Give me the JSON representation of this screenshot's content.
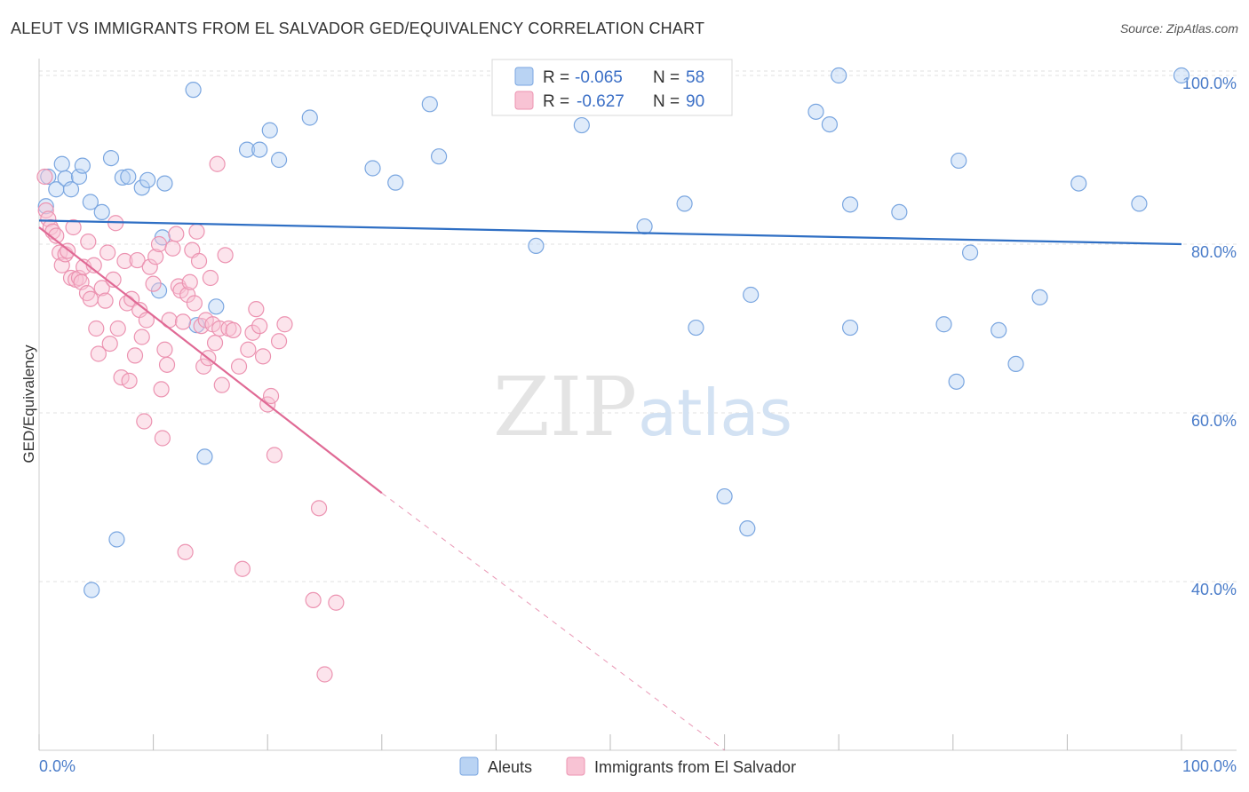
{
  "title": "ALEUT VS IMMIGRANTS FROM EL SALVADOR GED/EQUIVALENCY CORRELATION CHART",
  "source": "Source: ZipAtlas.com",
  "watermark": {
    "zip": "ZIP",
    "atlas": "atlas"
  },
  "stats": {
    "r_label": "R =",
    "n_label": "N =",
    "aleuts": {
      "r": "-0.065",
      "n": "58"
    },
    "salvador": {
      "r": "-0.627",
      "n": "90"
    }
  },
  "colors": {
    "aleut_fill": "#b9d3f3",
    "aleut_stroke": "#7aa6e0",
    "aleut_line": "#2f6fc4",
    "salvador_fill": "#f8c3d4",
    "salvador_stroke": "#ec93b1",
    "salvador_line": "#e06a95",
    "grid": "#e2e2e2",
    "tick_label": "#4a7cc9"
  },
  "chart_data": {
    "type": "scatter",
    "title": "ALEUT VS IMMIGRANTS FROM EL SALVADOR GED/EQUIVALENCY CORRELATION CHART",
    "xlabel": "",
    "ylabel": "GED/Equivalency",
    "xlim": [
      0,
      100
    ],
    "ylim": [
      20,
      102
    ],
    "x_tick_labels": [
      "0.0%",
      "100.0%"
    ],
    "y_ticks": [
      40,
      60,
      80,
      100
    ],
    "y_tick_labels": [
      "40.0%",
      "60.0%",
      "80.0%",
      "100.0%"
    ],
    "grid": true,
    "legend": "bottom-center",
    "series": [
      {
        "name": "Aleuts",
        "points": [
          [
            0.6,
            84.5
          ],
          [
            0.8,
            88.0
          ],
          [
            1.5,
            86.5
          ],
          [
            2.0,
            89.5
          ],
          [
            2.3,
            87.8
          ],
          [
            2.8,
            86.5
          ],
          [
            3.5,
            88.0
          ],
          [
            3.8,
            89.3
          ],
          [
            4.5,
            85.0
          ],
          [
            5.5,
            83.8
          ],
          [
            6.3,
            90.2
          ],
          [
            7.3,
            87.9
          ],
          [
            7.8,
            88.0
          ],
          [
            9.0,
            86.7
          ],
          [
            9.5,
            87.6
          ],
          [
            11.0,
            87.2
          ],
          [
            10.5,
            74.5
          ],
          [
            10.8,
            80.8
          ],
          [
            13.5,
            98.3
          ],
          [
            13.8,
            70.4
          ],
          [
            14.5,
            54.8
          ],
          [
            15.5,
            72.6
          ],
          [
            18.2,
            91.2
          ],
          [
            19.3,
            91.2
          ],
          [
            20.2,
            93.5
          ],
          [
            21.0,
            90.0
          ],
          [
            6.8,
            45.0
          ],
          [
            4.6,
            39.0
          ],
          [
            23.7,
            95.0
          ],
          [
            29.2,
            89.0
          ],
          [
            31.2,
            87.3
          ],
          [
            34.2,
            96.6
          ],
          [
            35.0,
            90.4
          ],
          [
            43.5,
            79.8
          ],
          [
            47.5,
            94.1
          ],
          [
            53.0,
            82.1
          ],
          [
            56.0,
            99.9
          ],
          [
            56.5,
            84.8
          ],
          [
            57.5,
            70.1
          ],
          [
            60.0,
            50.1
          ],
          [
            62.0,
            46.3
          ],
          [
            62.3,
            74.0
          ],
          [
            68.0,
            95.7
          ],
          [
            69.2,
            94.2
          ],
          [
            70.0,
            100.0
          ],
          [
            71.0,
            84.7
          ],
          [
            71.0,
            70.1
          ],
          [
            75.3,
            83.8
          ],
          [
            79.2,
            70.5
          ],
          [
            80.3,
            63.7
          ],
          [
            80.5,
            89.9
          ],
          [
            81.5,
            79.0
          ],
          [
            84.0,
            69.8
          ],
          [
            85.5,
            65.8
          ],
          [
            87.6,
            73.7
          ],
          [
            91.0,
            87.2
          ],
          [
            96.3,
            84.8
          ],
          [
            100.0,
            100.0
          ]
        ]
      },
      {
        "name": "Immigrants from El Salvador",
        "points": [
          [
            0.5,
            88.0
          ],
          [
            0.6,
            84.0
          ],
          [
            0.8,
            83.0
          ],
          [
            1.0,
            82.0
          ],
          [
            1.2,
            81.5
          ],
          [
            1.5,
            81.0
          ],
          [
            1.8,
            79.0
          ],
          [
            2.0,
            77.5
          ],
          [
            2.3,
            78.8
          ],
          [
            2.5,
            79.2
          ],
          [
            2.8,
            76.0
          ],
          [
            3.0,
            82.0
          ],
          [
            3.2,
            75.8
          ],
          [
            3.5,
            76.0
          ],
          [
            3.7,
            75.5
          ],
          [
            3.9,
            77.3
          ],
          [
            4.2,
            74.2
          ],
          [
            4.5,
            73.5
          ],
          [
            4.3,
            80.3
          ],
          [
            4.8,
            77.5
          ],
          [
            5.0,
            70.0
          ],
          [
            5.2,
            67.0
          ],
          [
            5.5,
            74.8
          ],
          [
            5.8,
            73.3
          ],
          [
            6.0,
            79.0
          ],
          [
            6.2,
            68.2
          ],
          [
            6.5,
            75.8
          ],
          [
            6.7,
            82.5
          ],
          [
            6.9,
            70.0
          ],
          [
            7.2,
            64.2
          ],
          [
            7.5,
            78.0
          ],
          [
            7.7,
            73.0
          ],
          [
            7.9,
            63.8
          ],
          [
            8.1,
            73.5
          ],
          [
            8.4,
            66.8
          ],
          [
            8.6,
            78.1
          ],
          [
            8.8,
            72.2
          ],
          [
            9.0,
            69.0
          ],
          [
            9.2,
            59.0
          ],
          [
            9.4,
            71.0
          ],
          [
            9.7,
            77.3
          ],
          [
            10.0,
            75.3
          ],
          [
            10.2,
            78.5
          ],
          [
            10.5,
            80.0
          ],
          [
            10.7,
            62.8
          ],
          [
            10.8,
            57.0
          ],
          [
            11.0,
            67.5
          ],
          [
            11.2,
            65.7
          ],
          [
            11.4,
            71.0
          ],
          [
            11.7,
            79.5
          ],
          [
            12.0,
            81.2
          ],
          [
            12.2,
            75.0
          ],
          [
            12.4,
            74.5
          ],
          [
            12.6,
            70.8
          ],
          [
            12.8,
            43.5
          ],
          [
            13.0,
            74.0
          ],
          [
            13.2,
            75.5
          ],
          [
            13.4,
            79.3
          ],
          [
            13.6,
            73.0
          ],
          [
            13.8,
            81.5
          ],
          [
            14.0,
            78.0
          ],
          [
            14.2,
            70.3
          ],
          [
            14.4,
            65.5
          ],
          [
            14.6,
            71.0
          ],
          [
            14.8,
            66.5
          ],
          [
            15.0,
            76.0
          ],
          [
            15.2,
            70.5
          ],
          [
            15.4,
            68.3
          ],
          [
            15.6,
            89.5
          ],
          [
            15.8,
            70.0
          ],
          [
            16.0,
            63.3
          ],
          [
            16.3,
            78.7
          ],
          [
            16.6,
            70.0
          ],
          [
            17.0,
            69.8
          ],
          [
            17.5,
            65.5
          ],
          [
            17.8,
            41.5
          ],
          [
            18.3,
            67.5
          ],
          [
            18.7,
            69.5
          ],
          [
            19.0,
            72.3
          ],
          [
            19.3,
            70.3
          ],
          [
            19.6,
            66.7
          ],
          [
            20.0,
            61.0
          ],
          [
            20.3,
            62.0
          ],
          [
            20.6,
            55.0
          ],
          [
            21.0,
            68.5
          ],
          [
            21.5,
            70.5
          ],
          [
            24.0,
            37.8
          ],
          [
            24.5,
            48.7
          ],
          [
            25.0,
            29.0
          ],
          [
            26.0,
            37.5
          ]
        ]
      }
    ],
    "trendlines": [
      {
        "series": "Aleuts",
        "x": [
          0,
          100
        ],
        "y": [
          82.8,
          80.0
        ]
      },
      {
        "series": "Immigrants from El Salvador",
        "x": [
          0,
          30
        ],
        "y": [
          82.0,
          50.5
        ],
        "dashed_extension_to": [
          60,
          20
        ]
      }
    ]
  }
}
